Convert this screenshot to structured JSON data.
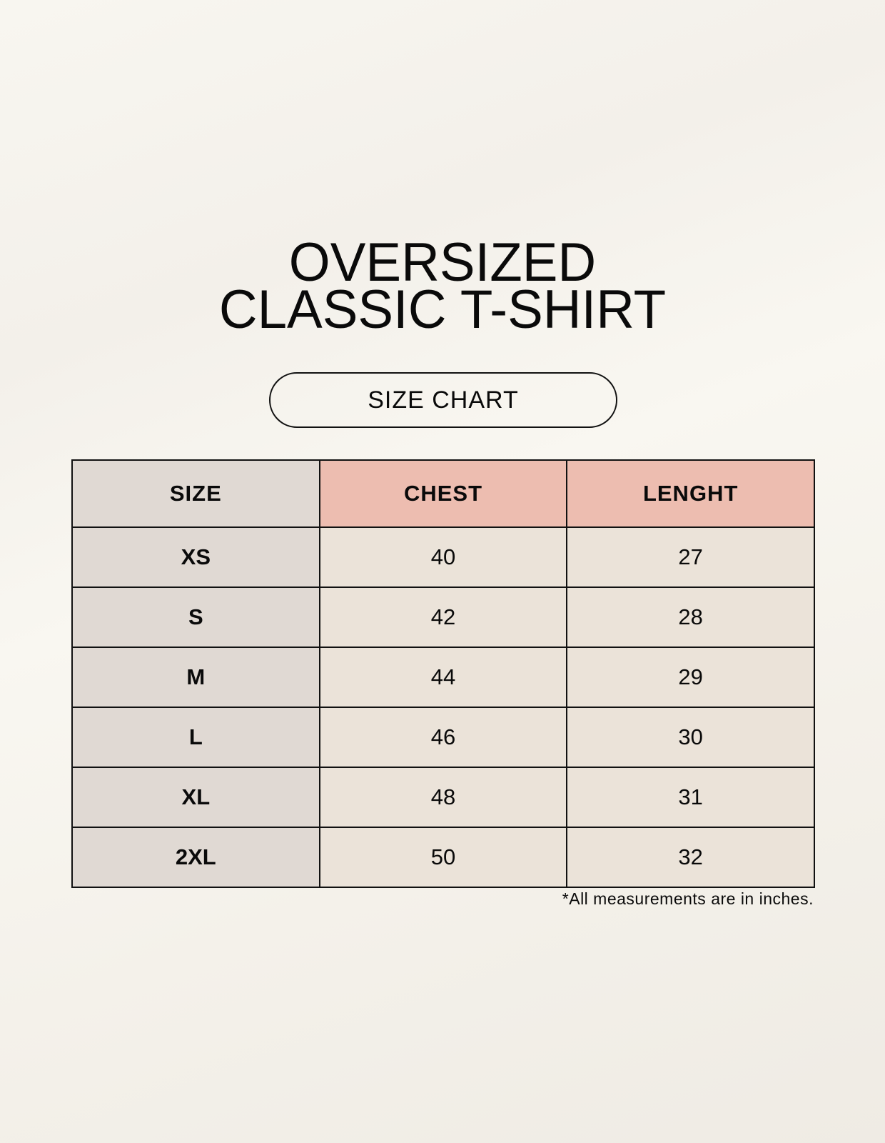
{
  "title": {
    "line1": "OVERSIZED",
    "line2": "CLASSIC T-SHIRT"
  },
  "badge": "SIZE CHART",
  "table": {
    "headers": [
      "SIZE",
      "CHEST",
      "LENGHT"
    ],
    "rows": [
      [
        "XS",
        "40",
        "27"
      ],
      [
        "S",
        "42",
        "28"
      ],
      [
        "M",
        "44",
        "29"
      ],
      [
        "L",
        "46",
        "30"
      ],
      [
        "XL",
        "48",
        "31"
      ],
      [
        "2XL",
        "50",
        "32"
      ]
    ]
  },
  "footnote": "*All measurements are in inches.",
  "colors": {
    "size_column": "#e0d9d3",
    "header_accent": "#edbdb0",
    "value_cells": "#ebe3d9"
  }
}
